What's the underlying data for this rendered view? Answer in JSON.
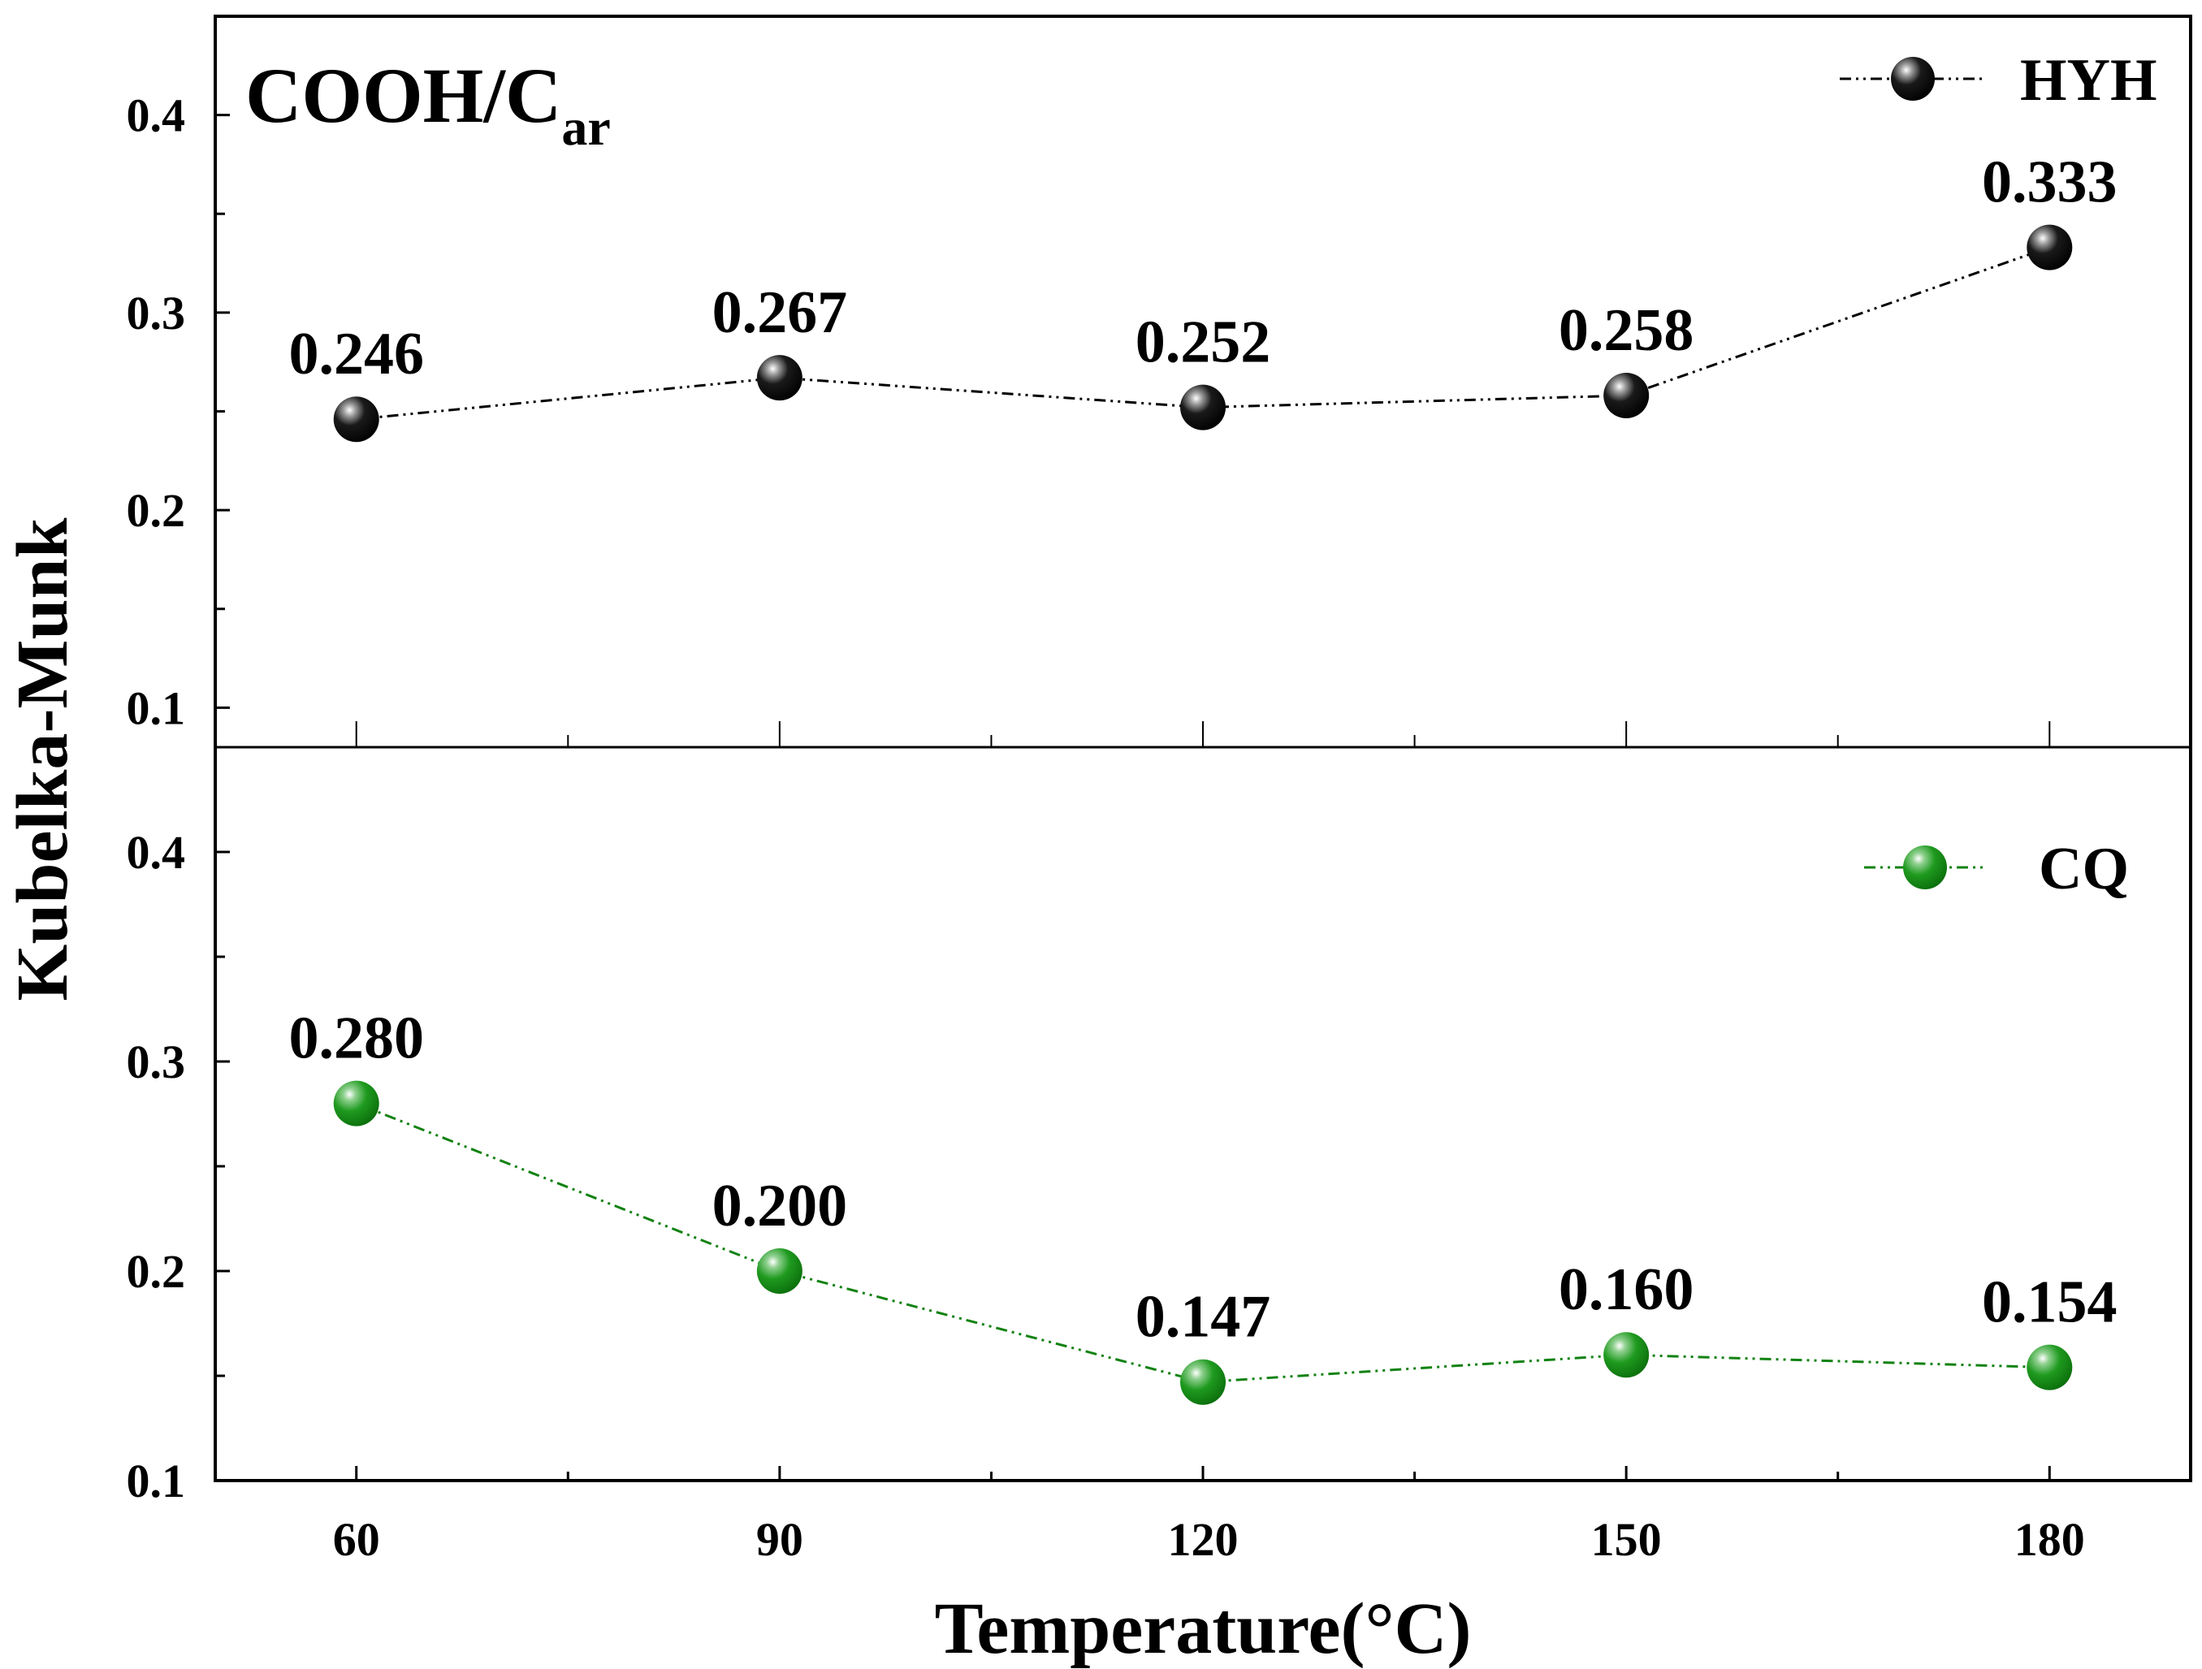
{
  "chart_data": {
    "type": "line",
    "title": "COOH/C",
    "title_subscript": "ar",
    "xlabel": "Temperature(°C)",
    "ylabel": "Kubelka-Munk",
    "x": [
      60,
      90,
      120,
      150,
      180
    ],
    "xlim": [
      50,
      190
    ],
    "x_ticks": [
      60,
      90,
      120,
      150,
      180
    ],
    "x_minor_ticks": [
      75,
      105,
      135,
      165
    ],
    "panels": [
      {
        "series_name": "HYH",
        "color": "#000000",
        "values": [
          0.246,
          0.267,
          0.252,
          0.258,
          0.333
        ],
        "labels": [
          "0.246",
          "0.267",
          "0.252",
          "0.258",
          "0.333"
        ],
        "ylim": [
          0.08,
          0.45
        ],
        "y_ticks": [
          0.1,
          0.2,
          0.3,
          0.4
        ],
        "y_tick_labels": [
          "0.1",
          "0.2",
          "0.3",
          "0.4"
        ],
        "legend_position": "top-right"
      },
      {
        "series_name": "CQ",
        "color": "#128212",
        "values": [
          0.28,
          0.2,
          0.147,
          0.16,
          0.154
        ],
        "labels": [
          "0.280",
          "0.200",
          "0.147",
          "0.160",
          "0.154"
        ],
        "ylim": [
          0.1,
          0.45
        ],
        "y_ticks": [
          0.1,
          0.2,
          0.3,
          0.4
        ],
        "y_tick_labels": [
          "0.1",
          "0.2",
          "0.3",
          "0.4"
        ],
        "legend_position": "top-right"
      }
    ]
  }
}
